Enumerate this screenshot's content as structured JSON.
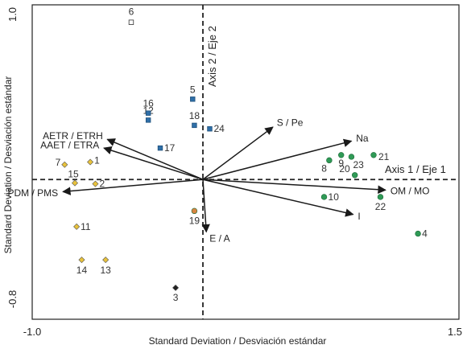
{
  "chart_data": {
    "type": "scatter",
    "title": "",
    "xlabel": "Standard Deviation / Desviación estándar",
    "ylabel": "Standard Deviation / Desviación estándar",
    "xlim": [
      -1.0,
      1.5
    ],
    "ylim": [
      -0.8,
      1.0
    ],
    "x_ticks": [
      "-1.0",
      "1.5"
    ],
    "y_ticks": [
      "1.0",
      "-0.8"
    ],
    "grid": false,
    "axis_lines": {
      "horizontal_label": "Axis 1 / Eje 1",
      "vertical_label": "Axis 2 / Eje 2"
    },
    "groups": [
      {
        "key": "yellow",
        "marker": "diamond",
        "color": "#e8c23c"
      },
      {
        "key": "blue",
        "marker": "square",
        "color": "#2f6fa8"
      },
      {
        "key": "green",
        "marker": "circle",
        "color": "#2f9a56"
      },
      {
        "key": "orange",
        "marker": "circle",
        "color": "#d88540"
      },
      {
        "key": "black",
        "marker": "diamond",
        "color": "#222222"
      },
      {
        "key": "white",
        "marker": "square",
        "color": "#ffffff"
      }
    ],
    "points": [
      {
        "label": "1",
        "x": -0.66,
        "y": 0.1,
        "group": "yellow"
      },
      {
        "label": "2",
        "x": -0.63,
        "y": -0.025,
        "group": "yellow"
      },
      {
        "label": "3",
        "x": -0.16,
        "y": -0.62,
        "group": "black"
      },
      {
        "label": "4",
        "x": 1.26,
        "y": -0.31,
        "group": "green"
      },
      {
        "label": "5",
        "x": -0.06,
        "y": 0.46,
        "group": "blue"
      },
      {
        "label": "6",
        "x": -0.42,
        "y": 0.9,
        "group": "white"
      },
      {
        "label": "7",
        "x": -0.81,
        "y": 0.085,
        "group": "yellow"
      },
      {
        "label": "8",
        "x": 0.74,
        "y": 0.11,
        "group": "green"
      },
      {
        "label": "9",
        "x": 0.81,
        "y": 0.14,
        "group": "green"
      },
      {
        "label": "10",
        "x": 0.71,
        "y": -0.1,
        "group": "green"
      },
      {
        "label": "11",
        "x": -0.74,
        "y": -0.27,
        "group": "yellow"
      },
      {
        "label": "12",
        "x": -0.32,
        "y": 0.34,
        "group": "blue"
      },
      {
        "label": "13",
        "x": -0.57,
        "y": -0.46,
        "group": "yellow"
      },
      {
        "label": "14",
        "x": -0.71,
        "y": -0.46,
        "group": "yellow"
      },
      {
        "label": "15",
        "x": -0.75,
        "y": -0.02,
        "group": "yellow"
      },
      {
        "label": "16",
        "x": -0.32,
        "y": 0.38,
        "group": "blue"
      },
      {
        "label": "17",
        "x": -0.25,
        "y": 0.18,
        "group": "blue"
      },
      {
        "label": "18",
        "x": -0.05,
        "y": 0.31,
        "group": "blue"
      },
      {
        "label": "19",
        "x": -0.05,
        "y": -0.18,
        "group": "orange"
      },
      {
        "label": "20",
        "x": 0.89,
        "y": 0.025,
        "group": "green"
      },
      {
        "label": "21",
        "x": 1.0,
        "y": 0.14,
        "group": "green"
      },
      {
        "label": "22",
        "x": 1.04,
        "y": -0.1,
        "group": "green"
      },
      {
        "label": "23",
        "x": 0.87,
        "y": 0.13,
        "group": "green"
      },
      {
        "label": "24",
        "x": 0.04,
        "y": 0.29,
        "group": "blue"
      }
    ],
    "vectors": [
      {
        "label": "AETR / ETRH",
        "x": -0.56,
        "y": 0.23
      },
      {
        "label": "AAET / ETRA",
        "x": -0.58,
        "y": 0.18
      },
      {
        "label": "PDM / PMS",
        "x": -0.82,
        "y": -0.07
      },
      {
        "label": "S / Pe",
        "x": 0.41,
        "y": 0.3
      },
      {
        "label": "Na",
        "x": 0.87,
        "y": 0.22
      },
      {
        "label": "OM / MO",
        "x": 1.07,
        "y": -0.06
      },
      {
        "label": "I",
        "x": 0.88,
        "y": -0.2
      },
      {
        "label": "E / A",
        "x": 0.02,
        "y": -0.3
      }
    ]
  }
}
